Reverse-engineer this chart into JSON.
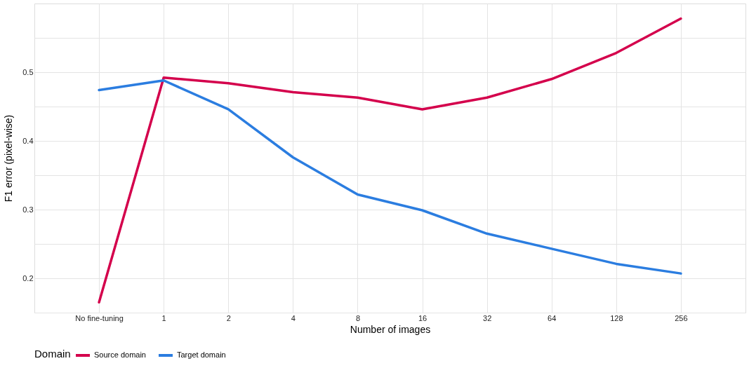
{
  "chart_data": {
    "type": "line",
    "xlabel": "Number of images",
    "ylabel": "F1 error (pixel-wise)",
    "legend_title": "Domain",
    "categories": [
      "No fine-tuning",
      "1",
      "2",
      "4",
      "8",
      "16",
      "32",
      "64",
      "128",
      "256"
    ],
    "series": [
      {
        "name": "Source domain",
        "color": "#d4004c",
        "values": [
          0.165,
          0.492,
          0.484,
          0.471,
          0.463,
          0.446,
          0.463,
          0.49,
          0.528,
          0.578
        ]
      },
      {
        "name": "Target domain",
        "color": "#2b7de0",
        "values": [
          0.474,
          0.488,
          0.446,
          0.376,
          0.322,
          0.299,
          0.265,
          0.243,
          0.221,
          0.207
        ]
      }
    ],
    "ylim": [
      0.15,
      0.6
    ],
    "yticks": [
      {
        "value": 0.15,
        "label": null
      },
      0.2,
      {
        "value": 0.25,
        "label": null
      },
      0.3,
      {
        "value": 0.35,
        "label": null
      },
      0.4,
      {
        "value": 0.45,
        "label": null
      },
      0.5,
      {
        "value": 0.55,
        "label": null
      }
    ],
    "grid": true,
    "legend": "bottom",
    "marker": "none",
    "line_style": "solid"
  }
}
